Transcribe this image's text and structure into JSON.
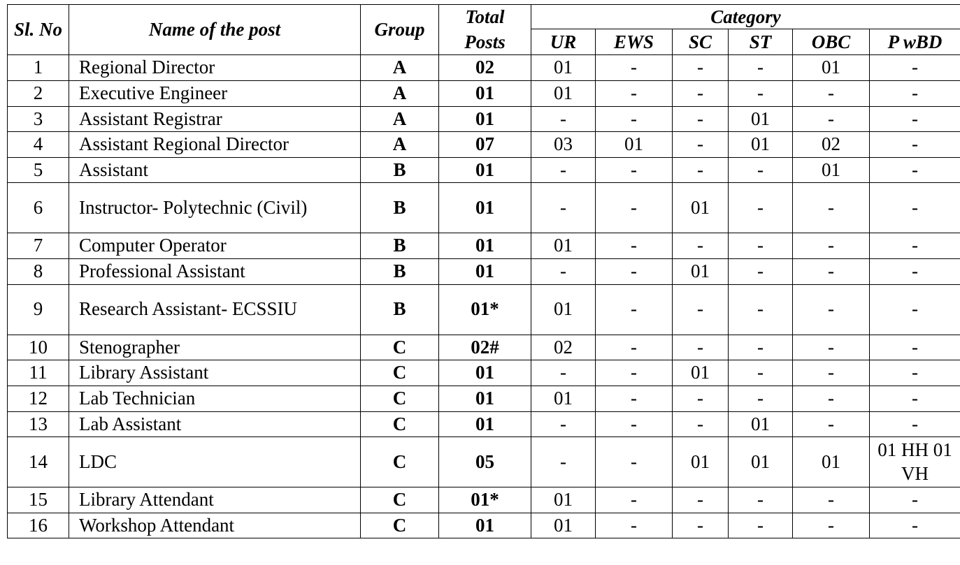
{
  "headers": {
    "sl_no": "Sl. No",
    "name": "Name of the post",
    "group": "Group",
    "total": "Total Posts",
    "category": "Category",
    "sub": [
      "UR",
      "EWS",
      "SC",
      "ST",
      "OBC",
      "P wBD"
    ]
  },
  "rows": [
    {
      "sl": "1",
      "name": "Regional Director",
      "group": "A",
      "total": "02",
      "cats": [
        "01",
        "-",
        "-",
        "-",
        "01",
        "-"
      ]
    },
    {
      "sl": "2",
      "name": "Executive Engineer",
      "group": "A",
      "total": "01",
      "cats": [
        "01",
        "-",
        "-",
        "-",
        "-",
        "-"
      ]
    },
    {
      "sl": "3",
      "name": "Assistant Registrar",
      "group": "A",
      "total": "01",
      "cats": [
        "-",
        "-",
        "-",
        "01",
        "-",
        "-"
      ]
    },
    {
      "sl": "4",
      "name": "Assistant Regional Director",
      "group": "A",
      "total": "07",
      "cats": [
        "03",
        "01",
        "-",
        "01",
        "02",
        "-"
      ]
    },
    {
      "sl": "5",
      "name": "Assistant",
      "group": "B",
      "total": "01",
      "cats": [
        "-",
        "-",
        "-",
        "-",
        "01",
        "-"
      ]
    },
    {
      "sl": "6",
      "name": "Instructor- Polytechnic (Civil)",
      "group": "B",
      "total": "01",
      "cats": [
        "-",
        "-",
        "01",
        "-",
        "-",
        "-"
      ]
    },
    {
      "sl": "7",
      "name": "Computer Operator",
      "group": "B",
      "total": "01",
      "cats": [
        "01",
        "-",
        "-",
        "-",
        "-",
        "-"
      ]
    },
    {
      "sl": "8",
      "name": "Professional Assistant",
      "group": "B",
      "total": "01",
      "cats": [
        "-",
        "-",
        "01",
        "-",
        "-",
        "-"
      ]
    },
    {
      "sl": "9",
      "name": "Research Assistant- ECSSIU",
      "group": "B",
      "total": "01*",
      "cats": [
        "01",
        "-",
        "-",
        "-",
        "-",
        "-"
      ]
    },
    {
      "sl": "10",
      "name": "Stenographer",
      "group": "C",
      "total": "02#",
      "cats": [
        "02",
        "-",
        "-",
        "-",
        "-",
        "-"
      ]
    },
    {
      "sl": "11",
      "name": "Library Assistant",
      "group": "C",
      "total": "01",
      "cats": [
        "-",
        "-",
        "01",
        "-",
        "-",
        "-"
      ]
    },
    {
      "sl": "12",
      "name": "Lab Technician",
      "group": "C",
      "total": "01",
      "cats": [
        "01",
        "-",
        "-",
        "-",
        "-",
        "-"
      ]
    },
    {
      "sl": "13",
      "name": "Lab Assistant",
      "group": "C",
      "total": "01",
      "cats": [
        "-",
        "-",
        "-",
        "01",
        "-",
        "-"
      ]
    },
    {
      "sl": "14",
      "name": "LDC",
      "group": "C",
      "total": "05",
      "cats": [
        "-",
        "-",
        "01",
        "01",
        "01",
        "01 HH 01 VH"
      ]
    },
    {
      "sl": "15",
      "name": "Library Attendant",
      "group": "C",
      "total": "01*",
      "cats": [
        "01",
        "-",
        "-",
        "-",
        "-",
        "-"
      ]
    },
    {
      "sl": "16",
      "name": "Workshop Attendant",
      "group": "C",
      "total": "01",
      "cats": [
        "01",
        "-",
        "-",
        "-",
        "-",
        "-"
      ]
    }
  ]
}
